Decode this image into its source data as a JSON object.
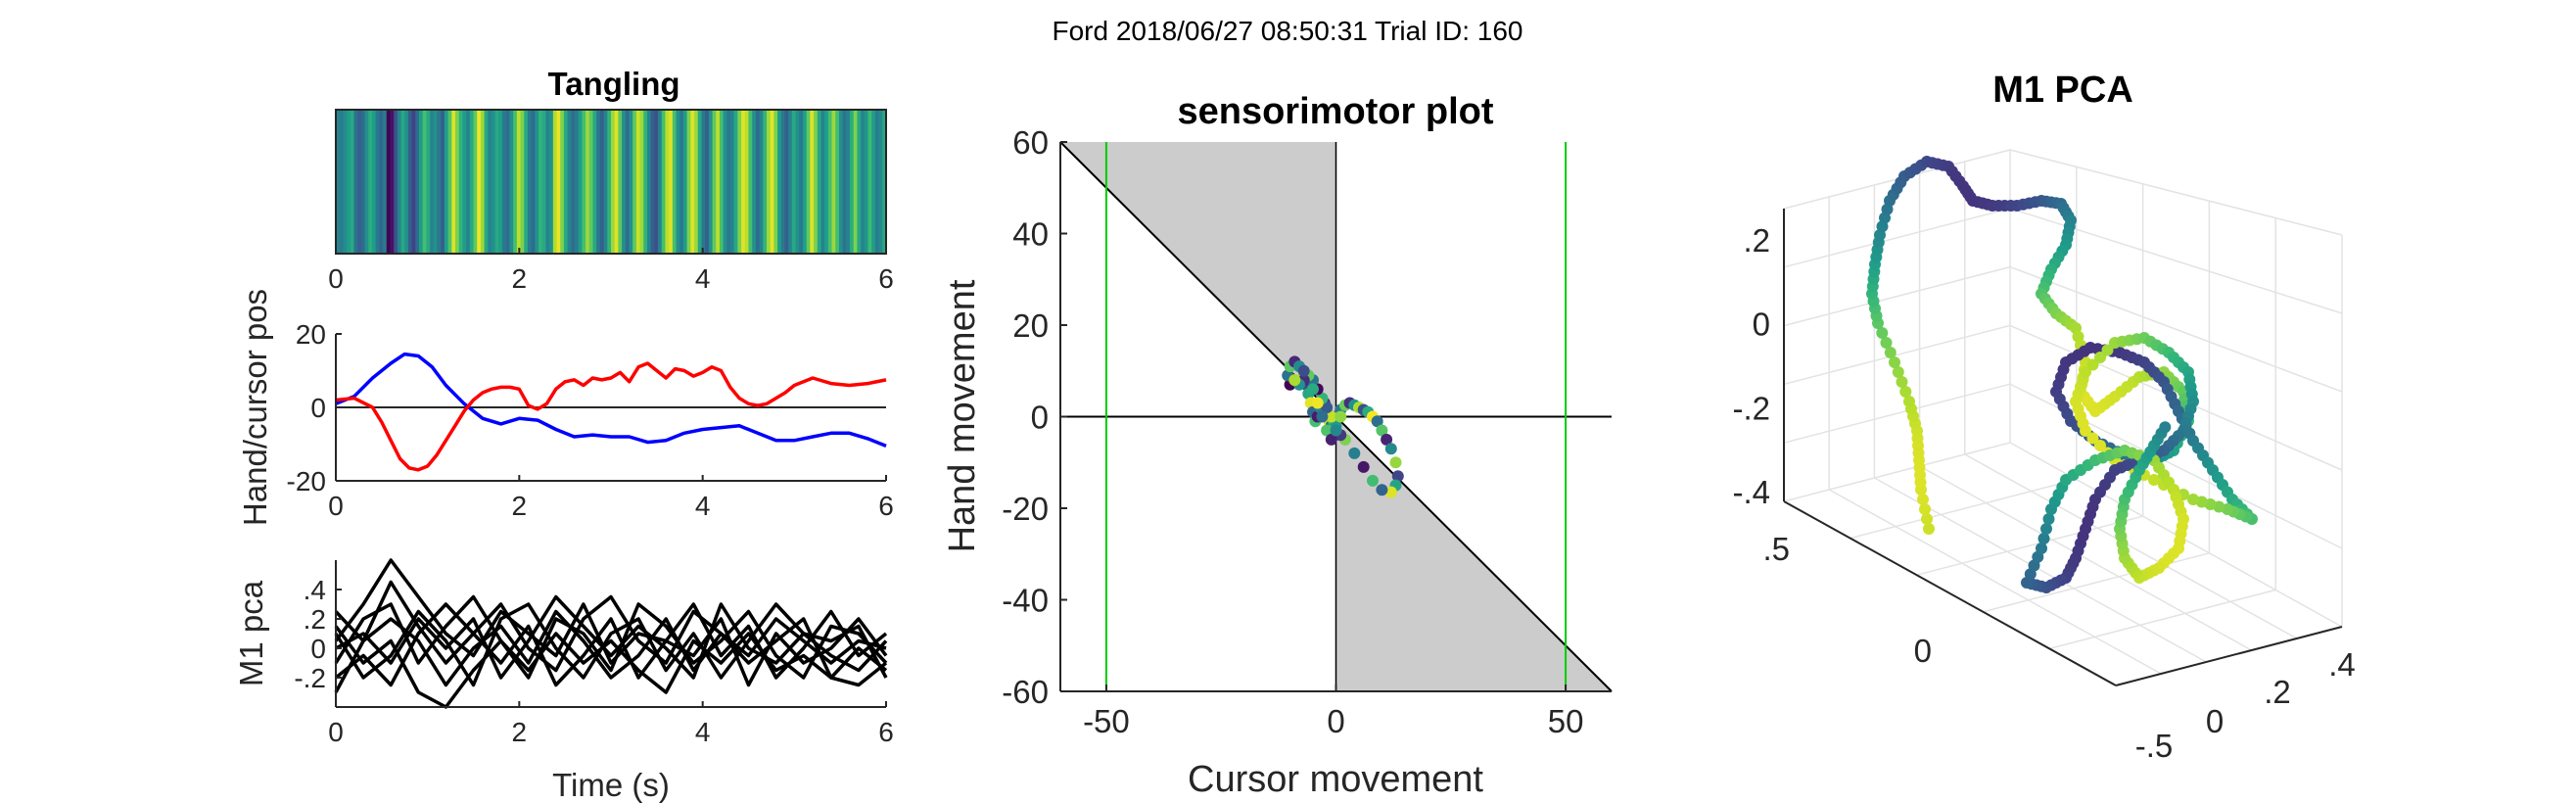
{
  "figure": {
    "suptitle": "Ford 2018/06/27 08:50:31 Trial ID: 160"
  },
  "chart_data": [
    {
      "id": "tangling",
      "type": "heatmap",
      "title": "Tangling",
      "xlim": [
        0,
        6
      ],
      "xticks": [
        0,
        2,
        4,
        6
      ],
      "colormap": "viridis",
      "values": [
        0.45,
        0.42,
        0.48,
        0.55,
        0.6,
        0.38,
        0.3,
        0.35,
        0.5,
        0.62,
        0.55,
        0.4,
        0.33,
        0.42,
        0.0,
        0.05,
        0.25,
        0.45,
        0.6,
        0.5,
        0.3,
        0.2,
        0.35,
        0.55,
        0.7,
        0.6,
        0.45,
        0.5,
        0.4,
        0.3,
        0.55,
        0.72,
        0.95,
        0.8,
        0.65,
        0.55,
        0.45,
        0.6,
        0.75,
        0.98,
        0.85,
        0.6,
        0.45,
        0.5,
        0.6,
        0.55,
        0.4,
        0.35,
        0.5,
        0.7,
        0.9,
        0.8,
        0.6,
        0.42,
        0.35,
        0.5,
        0.65,
        0.6,
        0.45,
        0.52,
        0.88,
        0.97,
        0.8,
        0.6,
        0.45,
        0.35,
        0.42,
        0.55,
        0.7,
        0.85,
        0.75,
        0.6,
        0.4,
        0.3,
        0.45,
        0.65,
        0.85,
        0.95,
        0.75,
        0.5,
        0.35,
        0.5,
        0.75,
        0.92,
        0.85,
        0.65,
        0.45,
        0.3,
        0.25,
        0.45,
        0.7,
        0.9,
        0.95,
        0.7,
        0.5,
        0.4,
        0.55,
        0.8,
        0.95,
        0.85,
        0.6,
        0.4,
        0.3,
        0.5,
        0.75,
        0.9,
        0.7,
        0.5,
        0.4,
        0.45,
        0.6,
        0.8,
        0.95,
        0.9,
        0.7,
        0.5,
        0.35,
        0.45,
        0.65,
        0.85,
        0.96,
        0.8,
        0.55,
        0.4,
        0.3,
        0.45,
        0.6,
        0.5,
        0.4,
        0.55,
        0.75,
        0.95,
        0.8,
        0.6,
        0.45,
        0.55,
        0.7,
        0.85,
        0.7,
        0.5,
        0.38,
        0.45,
        0.62,
        0.8,
        0.6,
        0.45,
        0.52,
        0.68,
        0.55,
        0.42,
        0.48,
        0.6
      ]
    },
    {
      "id": "hand-cursor",
      "type": "line",
      "ylabel": "Hand/cursor pos",
      "xlim": [
        0,
        6
      ],
      "ylim": [
        -20,
        20
      ],
      "xticks": [
        0,
        2,
        4,
        6
      ],
      "yticks": [
        20,
        0,
        -20
      ],
      "zero_line": true,
      "series": [
        {
          "color": "#0000ff",
          "x": [
            0,
            0.2,
            0.4,
            0.6,
            0.75,
            0.9,
            1.05,
            1.2,
            1.4,
            1.6,
            1.8,
            2.0,
            2.2,
            2.4,
            2.6,
            2.8,
            3.0,
            3.2,
            3.4,
            3.6,
            3.8,
            4.0,
            4.2,
            4.4,
            4.6,
            4.8,
            5.0,
            5.2,
            5.4,
            5.6,
            5.8,
            6.0
          ],
          "y": [
            1,
            3,
            8,
            12,
            14.5,
            14,
            11,
            6,
            1,
            -3,
            -4.5,
            -3,
            -3.5,
            -6,
            -8,
            -7.5,
            -8,
            -8,
            -9.5,
            -9,
            -7,
            -6,
            -5.5,
            -5,
            -7,
            -9,
            -9,
            -8,
            -7,
            -7,
            -8.5,
            -10.5
          ]
        },
        {
          "color": "#ff0000",
          "x": [
            0,
            0.2,
            0.4,
            0.5,
            0.6,
            0.7,
            0.8,
            0.9,
            1.0,
            1.1,
            1.2,
            1.3,
            1.4,
            1.5,
            1.6,
            1.7,
            1.8,
            1.9,
            2.0,
            2.1,
            2.2,
            2.3,
            2.4,
            2.5,
            2.6,
            2.7,
            2.8,
            2.9,
            3.0,
            3.1,
            3.2,
            3.3,
            3.4,
            3.5,
            3.6,
            3.7,
            3.8,
            3.9,
            4.0,
            4.1,
            4.2,
            4.3,
            4.4,
            4.5,
            4.6,
            4.7,
            4.8,
            4.9,
            5.0,
            5.2,
            5.4,
            5.6,
            5.8,
            6.0
          ],
          "y": [
            2,
            2.5,
            0,
            -4,
            -9,
            -14,
            -16.5,
            -17,
            -16,
            -13,
            -9,
            -5,
            -1,
            2,
            4,
            5,
            5.5,
            5.5,
            5,
            0.5,
            -0.5,
            1,
            5,
            7,
            7.5,
            6,
            8,
            7.5,
            8,
            9.5,
            7,
            11,
            12,
            10,
            8,
            10.5,
            10,
            8.5,
            9.5,
            11,
            10,
            5.5,
            2.5,
            1,
            0.5,
            1,
            2.5,
            4,
            6,
            8,
            6.5,
            6,
            6.5,
            7.5
          ]
        }
      ]
    },
    {
      "id": "m1-pca-time",
      "type": "line",
      "xlabel": "Time (s)",
      "ylabel": "M1 pca",
      "xlim": [
        0,
        6
      ],
      "ylim": [
        -0.4,
        0.6
      ],
      "xticks": [
        0,
        2,
        4,
        6
      ],
      "yticks": [
        0.4,
        0.2,
        0,
        -0.2
      ],
      "color": "#000000",
      "series": [
        {
          "x": [
            0,
            0.3,
            0.6,
            0.9,
            1.2,
            1.5,
            1.8,
            2.1,
            2.4,
            2.7,
            3.0,
            3.3,
            3.6,
            3.9,
            4.2,
            4.5,
            4.8,
            5.1,
            5.4,
            5.7,
            6.0
          ],
          "y": [
            0.25,
            0.05,
            0.45,
            0.15,
            -0.1,
            0.1,
            0.3,
            0.0,
            -0.15,
            0.2,
            0.35,
            0.05,
            -0.1,
            0.25,
            0.1,
            -0.05,
            0.2,
            0.05,
            -0.1,
            0.05,
            0.0
          ]
        },
        {
          "x": [
            0,
            0.3,
            0.6,
            0.9,
            1.2,
            1.5,
            1.8,
            2.1,
            2.4,
            2.7,
            3.0,
            3.3,
            3.6,
            3.9,
            4.2,
            4.5,
            4.8,
            5.1,
            5.4,
            5.7,
            6.0
          ],
          "y": [
            -0.1,
            0.2,
            0.3,
            -0.1,
            0.15,
            0.35,
            0.05,
            -0.2,
            0.2,
            0.1,
            -0.15,
            0.3,
            0.15,
            -0.1,
            0.05,
            0.25,
            -0.05,
            -0.2,
            0.15,
            0.1,
            -0.1
          ]
        },
        {
          "x": [
            0,
            0.3,
            0.6,
            0.9,
            1.2,
            1.5,
            1.8,
            2.1,
            2.4,
            2.7,
            3.0,
            3.3,
            3.6,
            3.9,
            4.2,
            4.5,
            4.8,
            5.1,
            5.4,
            5.7,
            6.0
          ],
          "y": [
            0.1,
            -0.2,
            -0.05,
            0.25,
            0.05,
            -0.25,
            0.2,
            0.3,
            0.0,
            -0.2,
            0.1,
            0.2,
            -0.15,
            0.1,
            -0.2,
            0.05,
            0.3,
            0.1,
            -0.05,
            -0.15,
            0.05
          ]
        },
        {
          "x": [
            0,
            0.3,
            0.6,
            0.9,
            1.2,
            1.5,
            1.8,
            2.1,
            2.4,
            2.7,
            3.0,
            3.3,
            3.6,
            3.9,
            4.2,
            4.5,
            4.8,
            5.1,
            5.4,
            5.7,
            6.0
          ],
          "y": [
            -0.3,
            0.05,
            0.2,
            0.05,
            -0.25,
            0.0,
            0.15,
            -0.1,
            0.25,
            0.05,
            -0.2,
            -0.05,
            0.2,
            -0.15,
            0.1,
            -0.1,
            0.05,
            0.2,
            -0.2,
            0.0,
            -0.15
          ]
        },
        {
          "x": [
            0,
            0.3,
            0.6,
            0.9,
            1.2,
            1.5,
            1.8,
            2.1,
            2.4,
            2.7,
            3.0,
            3.3,
            3.6,
            3.9,
            4.2,
            4.5,
            4.8,
            5.1,
            5.4,
            5.7,
            6.0
          ],
          "y": [
            0.05,
            0.3,
            0.6,
            0.35,
            0.1,
            -0.05,
            0.25,
            0.1,
            -0.05,
            0.3,
            -0.1,
            0.1,
            0.05,
            0.3,
            -0.05,
            0.15,
            -0.2,
            0.0,
            0.25,
            -0.05,
            0.1
          ]
        },
        {
          "x": [
            0,
            0.3,
            0.6,
            0.9,
            1.2,
            1.5,
            1.8,
            2.1,
            2.4,
            2.7,
            3.0,
            3.3,
            3.6,
            3.9,
            4.2,
            4.5,
            4.8,
            5.1,
            5.4,
            5.7,
            6.0
          ],
          "y": [
            -0.2,
            -0.05,
            -0.25,
            0.1,
            0.3,
            0.1,
            -0.1,
            0.15,
            -0.25,
            -0.05,
            0.2,
            -0.2,
            0.05,
            -0.05,
            0.2,
            -0.25,
            0.1,
            -0.1,
            0.0,
            0.2,
            -0.05
          ]
        },
        {
          "x": [
            0,
            0.3,
            0.6,
            0.9,
            1.2,
            1.5,
            1.8,
            2.1,
            2.4,
            2.7,
            3.0,
            3.3,
            3.6,
            3.9,
            4.2,
            4.5,
            4.8,
            5.1,
            5.4,
            5.7,
            6.0
          ],
          "y": [
            0.15,
            -0.1,
            0.05,
            -0.3,
            -0.4,
            -0.15,
            0.05,
            -0.15,
            0.1,
            -0.1,
            0.05,
            -0.15,
            -0.3,
            0.05,
            -0.1,
            0.1,
            -0.15,
            -0.05,
            -0.2,
            -0.25,
            -0.1
          ]
        },
        {
          "x": [
            0,
            0.3,
            0.6,
            0.9,
            1.2,
            1.5,
            1.8,
            2.1,
            2.4,
            2.7,
            3.0,
            3.3,
            3.6,
            3.9,
            4.2,
            4.5,
            4.8,
            5.1,
            5.4,
            5.7,
            6.0
          ],
          "y": [
            0.0,
            0.1,
            -0.1,
            0.2,
            0.0,
            0.2,
            -0.2,
            0.05,
            0.35,
            0.15,
            -0.05,
            0.15,
            0.0,
            -0.2,
            0.3,
            0.0,
            -0.1,
            0.1,
            0.05,
            0.15,
            -0.2
          ]
        }
      ]
    },
    {
      "id": "sensorimotor",
      "type": "scatter",
      "title": "sensorimotor plot",
      "xlabel": "Cursor movement",
      "ylabel": "Hand movement",
      "xlim": [
        -60,
        60
      ],
      "ylim": [
        -60,
        60
      ],
      "xticks": [
        -50,
        0,
        50
      ],
      "yticks": [
        60,
        40,
        20,
        0,
        -20,
        -40,
        -60
      ],
      "shaded_color": "#cccccc",
      "diagonal_line": "y = -x",
      "vertical_lines": [
        -50,
        50
      ],
      "vertical_line_color": "#00cc00",
      "colormap": "viridis",
      "points": [
        [
          -10,
          7
        ],
        [
          -10.5,
          9
        ],
        [
          -10,
          11
        ],
        [
          -9,
          12
        ],
        [
          -8,
          11
        ],
        [
          -7,
          9
        ],
        [
          -6.5,
          7
        ],
        [
          -6,
          5
        ],
        [
          -5.5,
          3
        ],
        [
          -5,
          1
        ],
        [
          -4.5,
          -1
        ],
        [
          -4,
          0
        ],
        [
          -3.5,
          2
        ],
        [
          -3,
          4
        ],
        [
          -2.5,
          3
        ],
        [
          -2,
          1
        ],
        [
          -1.5,
          -1
        ],
        [
          -1,
          -2
        ],
        [
          -0.5,
          -1
        ],
        [
          0,
          0
        ],
        [
          1,
          1.5
        ],
        [
          2,
          2.5
        ],
        [
          3,
          3
        ],
        [
          4,
          2.5
        ],
        [
          5,
          2
        ],
        [
          6,
          1.5
        ],
        [
          7,
          1
        ],
        [
          8,
          0
        ],
        [
          9,
          -1
        ],
        [
          10,
          -3
        ],
        [
          11,
          -5
        ],
        [
          12,
          -7
        ],
        [
          13,
          -10
        ],
        [
          13.5,
          -13
        ],
        [
          13,
          -15
        ],
        [
          12,
          -16.5
        ],
        [
          10,
          -16
        ],
        [
          8,
          -14
        ],
        [
          6,
          -11
        ],
        [
          4,
          -8
        ],
        [
          2,
          -5
        ],
        [
          1,
          -4
        ],
        [
          0,
          -2
        ],
        [
          -1,
          0
        ],
        [
          -2,
          2
        ],
        [
          -3,
          4
        ],
        [
          -4,
          6
        ],
        [
          -5,
          8
        ],
        [
          -6,
          9
        ],
        [
          -7,
          8
        ],
        [
          -8,
          7
        ],
        [
          -9,
          8
        ],
        [
          -7,
          10
        ],
        [
          -5,
          6
        ],
        [
          -4,
          3
        ],
        [
          -3,
          0
        ],
        [
          -2,
          -3
        ],
        [
          -1,
          -5
        ],
        [
          0,
          -3
        ],
        [
          1,
          0
        ]
      ]
    },
    {
      "id": "m1-pca-3d",
      "type": "scatter",
      "title": "M1 PCA",
      "zticks": [
        0.2,
        0,
        -0.2,
        -0.4
      ],
      "xticks_front": [
        0.5,
        0
      ],
      "yticks_front": [
        -0.5,
        0,
        0.2,
        0.4
      ],
      "colormap": "viridis"
    }
  ]
}
